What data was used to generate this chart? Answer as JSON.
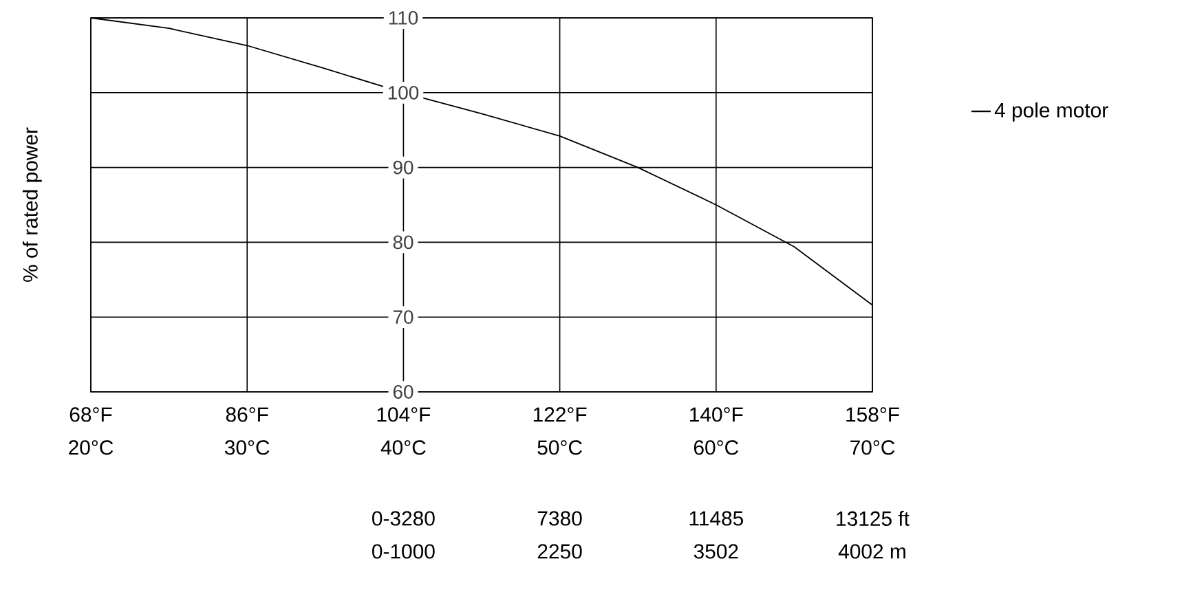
{
  "chart_data": {
    "type": "line",
    "ylabel": "% of rated power",
    "x": [
      20,
      25,
      30,
      35,
      40,
      45,
      50,
      55,
      60,
      65,
      70
    ],
    "series": [
      {
        "name": "4 pole motor",
        "color": "#000000",
        "values": [
          110,
          108.6,
          106.3,
          103.2,
          100,
          97.2,
          94.2,
          90,
          85,
          79.4,
          71.6
        ]
      }
    ],
    "xlim": [
      20,
      70
    ],
    "ylim": [
      60,
      110
    ],
    "xticks": [
      {
        "value": 20,
        "label": "20°C"
      },
      {
        "value": 30,
        "label": "30°C"
      },
      {
        "value": 40,
        "label": "40°C"
      },
      {
        "value": 50,
        "label": "50°C"
      },
      {
        "value": 60,
        "label": "60°C"
      },
      {
        "value": 70,
        "label": "70°C"
      }
    ],
    "x2lim": [
      68,
      158
    ],
    "x2ticks": [
      {
        "value": 68,
        "label": "68°F"
      },
      {
        "value": 86,
        "label": "86°F"
      },
      {
        "value": 104,
        "label": "104°F"
      },
      {
        "value": 122,
        "label": "122°F"
      },
      {
        "value": 140,
        "label": "140°F"
      },
      {
        "value": 158,
        "label": "158°F"
      }
    ],
    "annotations": [
      "0-3280",
      "7380",
      "11485",
      "13125 ft",
      "0-1000",
      "2250",
      "3502",
      "4002 m"
    ],
    "yticks": [
      60,
      70,
      80,
      90,
      100,
      110
    ],
    "grid": true,
    "legend": "right",
    "marker": "none",
    "line_style": "solid"
  }
}
